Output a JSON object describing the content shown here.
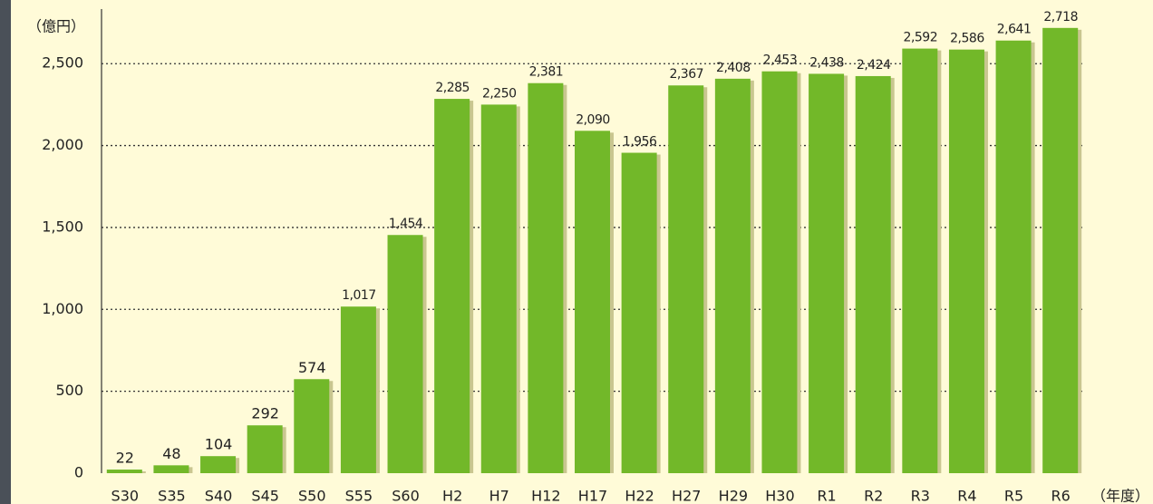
{
  "chart_data": {
    "type": "bar",
    "y_axis_label": "（億円）",
    "x_axis_label": "（年度）",
    "categories": [
      "S30",
      "S35",
      "S40",
      "S45",
      "S50",
      "S55",
      "S60",
      "H2",
      "H7",
      "H12",
      "H17",
      "H22",
      "H27",
      "H29",
      "H30",
      "R1",
      "R2",
      "R3",
      "R4",
      "R5",
      "R6"
    ],
    "values": [
      22,
      48,
      104,
      292,
      574,
      1017,
      1454,
      2285,
      2250,
      2381,
      2090,
      1956,
      2367,
      2408,
      2453,
      2438,
      2424,
      2592,
      2586,
      2641,
      2718
    ],
    "value_labels": [
      "22",
      "48",
      "104",
      "292",
      "574",
      "1,017",
      "1,454",
      "2,285",
      "2,250",
      "2,381",
      "2,090",
      "1,956",
      "2,367",
      "2,408",
      "2,453",
      "2,438",
      "2,424",
      "2,592",
      "2,586",
      "2,641",
      "2,718"
    ],
    "color": "#72b829",
    "ylim": [
      0,
      2800
    ],
    "yticks": [
      0,
      500,
      {
        "value": 1000,
        "label": "1,000"
      },
      {
        "value": 1500,
        "label": "1,500"
      },
      {
        "value": 2000,
        "label": "2,000"
      },
      {
        "value": 2500,
        "label": "2,500"
      }
    ],
    "grid": true
  }
}
